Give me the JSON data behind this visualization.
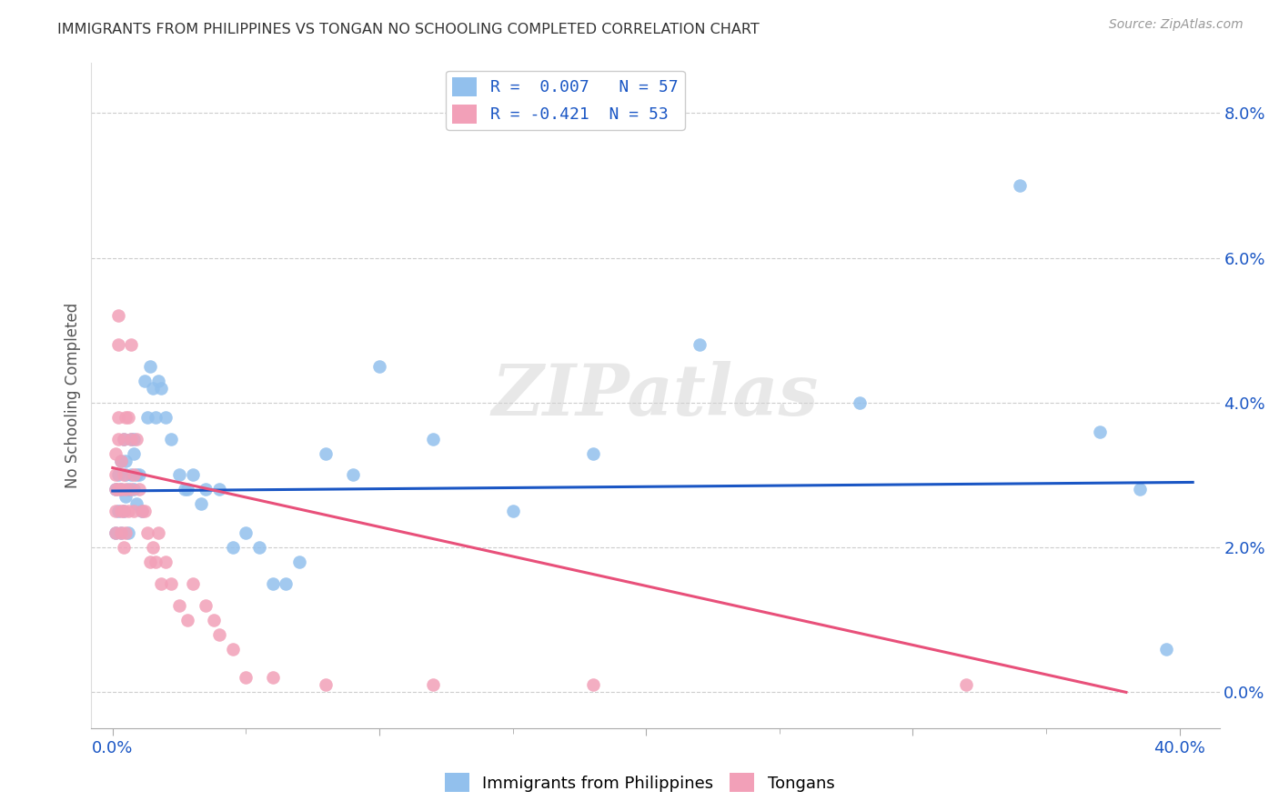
{
  "title": "IMMIGRANTS FROM PHILIPPINES VS TONGAN NO SCHOOLING COMPLETED CORRELATION CHART",
  "source": "Source: ZipAtlas.com",
  "xlabel_values": [
    0.0,
    0.1,
    0.2,
    0.3,
    0.4
  ],
  "xlabel_labels": [
    "0.0%",
    "",
    "",
    "",
    "40.0%"
  ],
  "ylabel_values": [
    0.0,
    0.02,
    0.04,
    0.06,
    0.08
  ],
  "ylabel_labels": [
    "0.0%",
    "2.0%",
    "4.0%",
    "6.0%",
    "8.0%"
  ],
  "xlim": [
    -0.008,
    0.415
  ],
  "ylim": [
    -0.005,
    0.087
  ],
  "watermark": "ZIPatlas",
  "color_blue": "#92C0ED",
  "color_pink": "#F2A0B8",
  "trendline_blue": "#1A56C4",
  "trendline_pink": "#E8507A",
  "philippines_trendline_x": [
    0.0,
    0.405
  ],
  "philippines_trendline_y": [
    0.0278,
    0.029
  ],
  "tongan_trendline_x": [
    0.0,
    0.38
  ],
  "tongan_trendline_y": [
    0.031,
    0.0
  ],
  "philippines_x": [
    0.001,
    0.001,
    0.002,
    0.002,
    0.003,
    0.003,
    0.003,
    0.004,
    0.004,
    0.005,
    0.005,
    0.005,
    0.006,
    0.006,
    0.007,
    0.007,
    0.008,
    0.008,
    0.008,
    0.009,
    0.009,
    0.01,
    0.011,
    0.012,
    0.013,
    0.014,
    0.015,
    0.016,
    0.017,
    0.018,
    0.02,
    0.022,
    0.025,
    0.027,
    0.028,
    0.03,
    0.033,
    0.035,
    0.04,
    0.045,
    0.05,
    0.055,
    0.06,
    0.065,
    0.07,
    0.08,
    0.09,
    0.1,
    0.12,
    0.15,
    0.18,
    0.22,
    0.28,
    0.34,
    0.37,
    0.385,
    0.395
  ],
  "philippines_y": [
    0.028,
    0.022,
    0.03,
    0.025,
    0.032,
    0.028,
    0.022,
    0.035,
    0.025,
    0.03,
    0.027,
    0.032,
    0.028,
    0.022,
    0.035,
    0.03,
    0.033,
    0.035,
    0.028,
    0.026,
    0.03,
    0.03,
    0.025,
    0.043,
    0.038,
    0.045,
    0.042,
    0.038,
    0.043,
    0.042,
    0.038,
    0.035,
    0.03,
    0.028,
    0.028,
    0.03,
    0.026,
    0.028,
    0.028,
    0.02,
    0.022,
    0.02,
    0.015,
    0.015,
    0.018,
    0.033,
    0.03,
    0.045,
    0.035,
    0.025,
    0.033,
    0.048,
    0.04,
    0.07,
    0.036,
    0.028,
    0.006
  ],
  "tongan_x": [
    0.001,
    0.001,
    0.001,
    0.001,
    0.001,
    0.002,
    0.002,
    0.002,
    0.002,
    0.002,
    0.003,
    0.003,
    0.003,
    0.003,
    0.004,
    0.004,
    0.004,
    0.004,
    0.005,
    0.005,
    0.005,
    0.006,
    0.006,
    0.007,
    0.007,
    0.007,
    0.008,
    0.008,
    0.009,
    0.01,
    0.011,
    0.012,
    0.013,
    0.014,
    0.015,
    0.016,
    0.017,
    0.018,
    0.02,
    0.022,
    0.025,
    0.028,
    0.03,
    0.035,
    0.038,
    0.04,
    0.045,
    0.05,
    0.06,
    0.08,
    0.12,
    0.18,
    0.32
  ],
  "tongan_y": [
    0.033,
    0.03,
    0.028,
    0.025,
    0.022,
    0.052,
    0.048,
    0.038,
    0.035,
    0.028,
    0.032,
    0.028,
    0.025,
    0.022,
    0.035,
    0.03,
    0.025,
    0.02,
    0.038,
    0.028,
    0.022,
    0.038,
    0.025,
    0.048,
    0.035,
    0.028,
    0.03,
    0.025,
    0.035,
    0.028,
    0.025,
    0.025,
    0.022,
    0.018,
    0.02,
    0.018,
    0.022,
    0.015,
    0.018,
    0.015,
    0.012,
    0.01,
    0.015,
    0.012,
    0.01,
    0.008,
    0.006,
    0.002,
    0.002,
    0.001,
    0.001,
    0.001,
    0.001
  ],
  "title_fontsize": 11.5,
  "axis_label_color": "#1A56C4",
  "ylabel_color": "#1A56C4",
  "background_color": "#FFFFFF",
  "grid_color": "#CCCCCC",
  "legend_line1": "R =  0.007   N = 57",
  "legend_line2": "R = -0.421  N = 53"
}
